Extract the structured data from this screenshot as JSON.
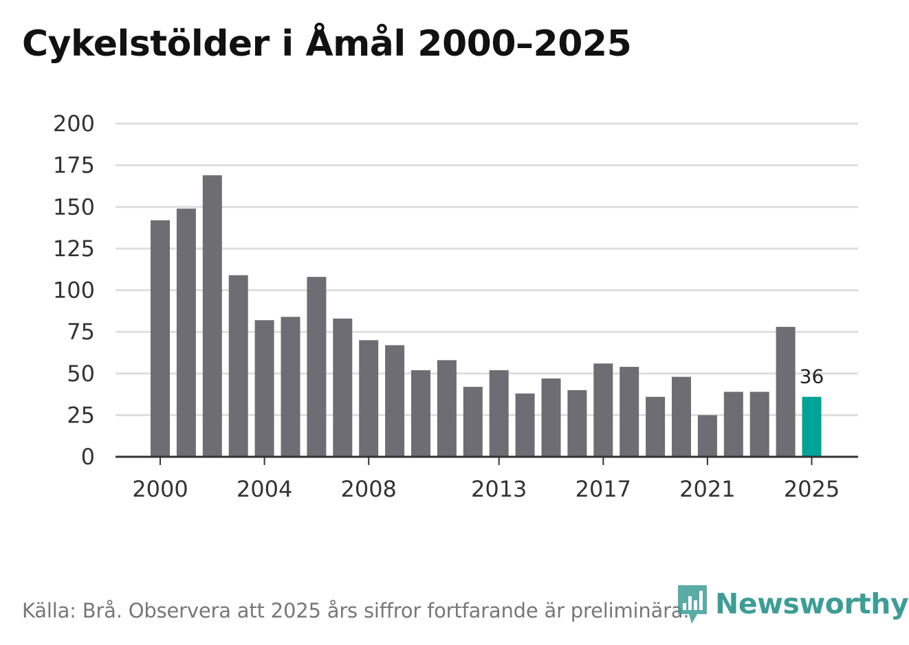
{
  "title": "Cykelstölder i Åmål 2000–2025",
  "source": "Källa: Brå. Observera att 2025 års siffror fortfarande är preliminära.",
  "brand": "Newsworthy",
  "colors": {
    "bar": "#6e6d73",
    "highlight": "#00a398",
    "grid": "#dedede",
    "axis": "#333333",
    "brand": "#3d9d96"
  },
  "chart_data": {
    "type": "bar",
    "title": "Cykelstölder i Åmål 2000–2025",
    "xlabel": "",
    "ylabel": "",
    "ylim": [
      0,
      200
    ],
    "yticks": [
      0,
      25,
      50,
      75,
      100,
      125,
      150,
      175,
      200
    ],
    "xtick_labels": [
      "2000",
      "2004",
      "2008",
      "2013",
      "2017",
      "2021",
      "2025"
    ],
    "categories": [
      "2000",
      "2001",
      "2002",
      "2003",
      "2004",
      "2005",
      "2006",
      "2007",
      "2008",
      "2009",
      "2010",
      "2011",
      "2012",
      "2013",
      "2014",
      "2015",
      "2016",
      "2017",
      "2018",
      "2019",
      "2020",
      "2021",
      "2022",
      "2023",
      "2024",
      "2025"
    ],
    "values": [
      142,
      149,
      169,
      109,
      82,
      84,
      108,
      83,
      70,
      67,
      52,
      58,
      42,
      52,
      38,
      47,
      40,
      56,
      54,
      36,
      48,
      25,
      39,
      39,
      78,
      36
    ],
    "highlight": "2025",
    "annotations": [
      {
        "category": "2025",
        "text": "36"
      }
    ],
    "grid": true,
    "legend": "none"
  }
}
